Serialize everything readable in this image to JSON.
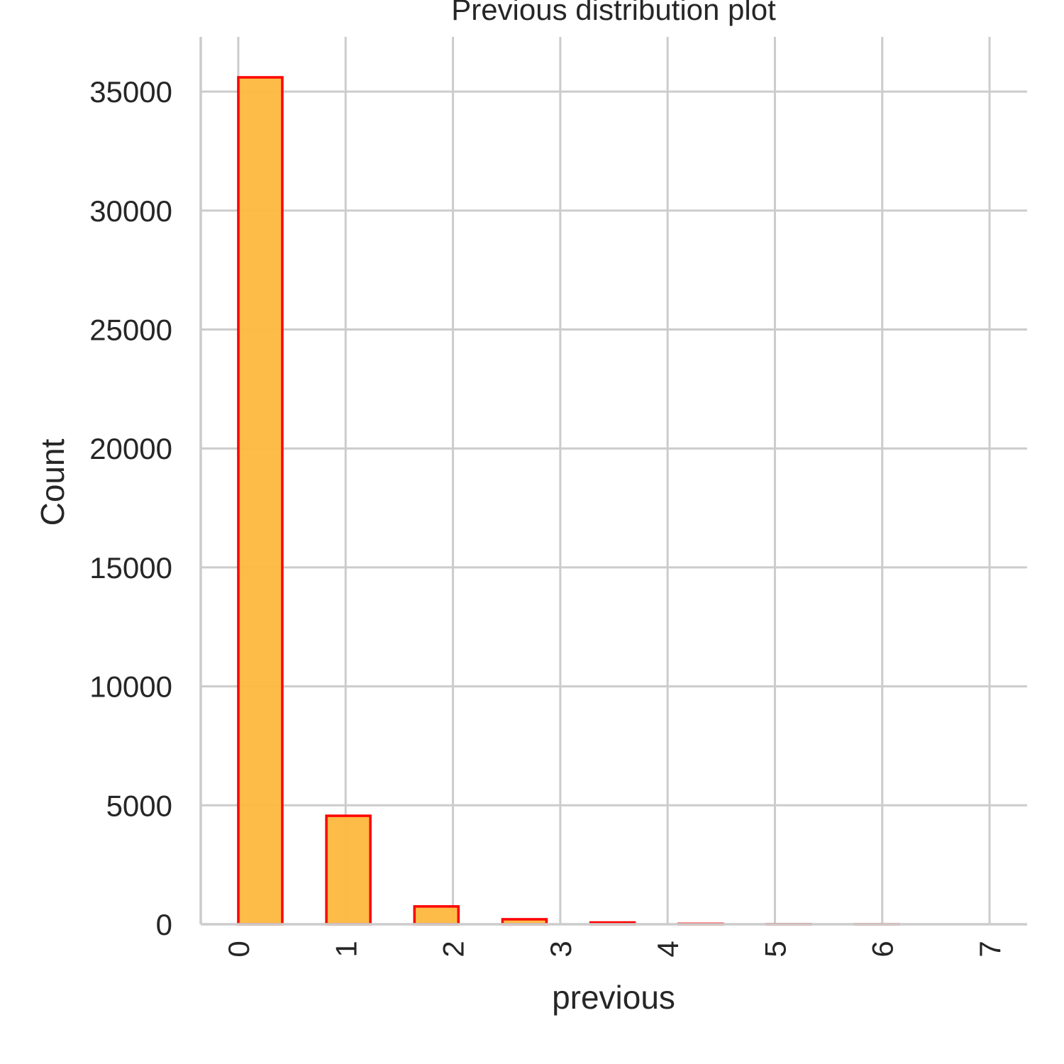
{
  "chart_data": {
    "type": "bar",
    "title": "Previous distribution plot",
    "xlabel": "previous",
    "ylabel": "Count",
    "x_ticks": [
      "0",
      "1",
      "2",
      "3",
      "4",
      "5",
      "6",
      "7"
    ],
    "bars": [
      {
        "x": 0,
        "value": 35600
      },
      {
        "x": 1,
        "value": 4560
      },
      {
        "x": 2,
        "value": 750
      },
      {
        "x": 3,
        "value": 210
      },
      {
        "x": 4,
        "value": 75
      },
      {
        "x": 5,
        "value": 20
      },
      {
        "x": 6,
        "value": 5
      },
      {
        "x": 7,
        "value": 1
      }
    ],
    "y_ticks": [
      0,
      5000,
      10000,
      15000,
      20000,
      25000,
      30000,
      35000
    ],
    "xlim": [
      -0.35,
      7.35
    ],
    "ylim": [
      0,
      37300
    ],
    "grid": true,
    "colors": {
      "bar_fill": "#fdb73e",
      "bar_edge": "#ff0000",
      "grid": "#cccccc",
      "text": "#262626"
    }
  }
}
